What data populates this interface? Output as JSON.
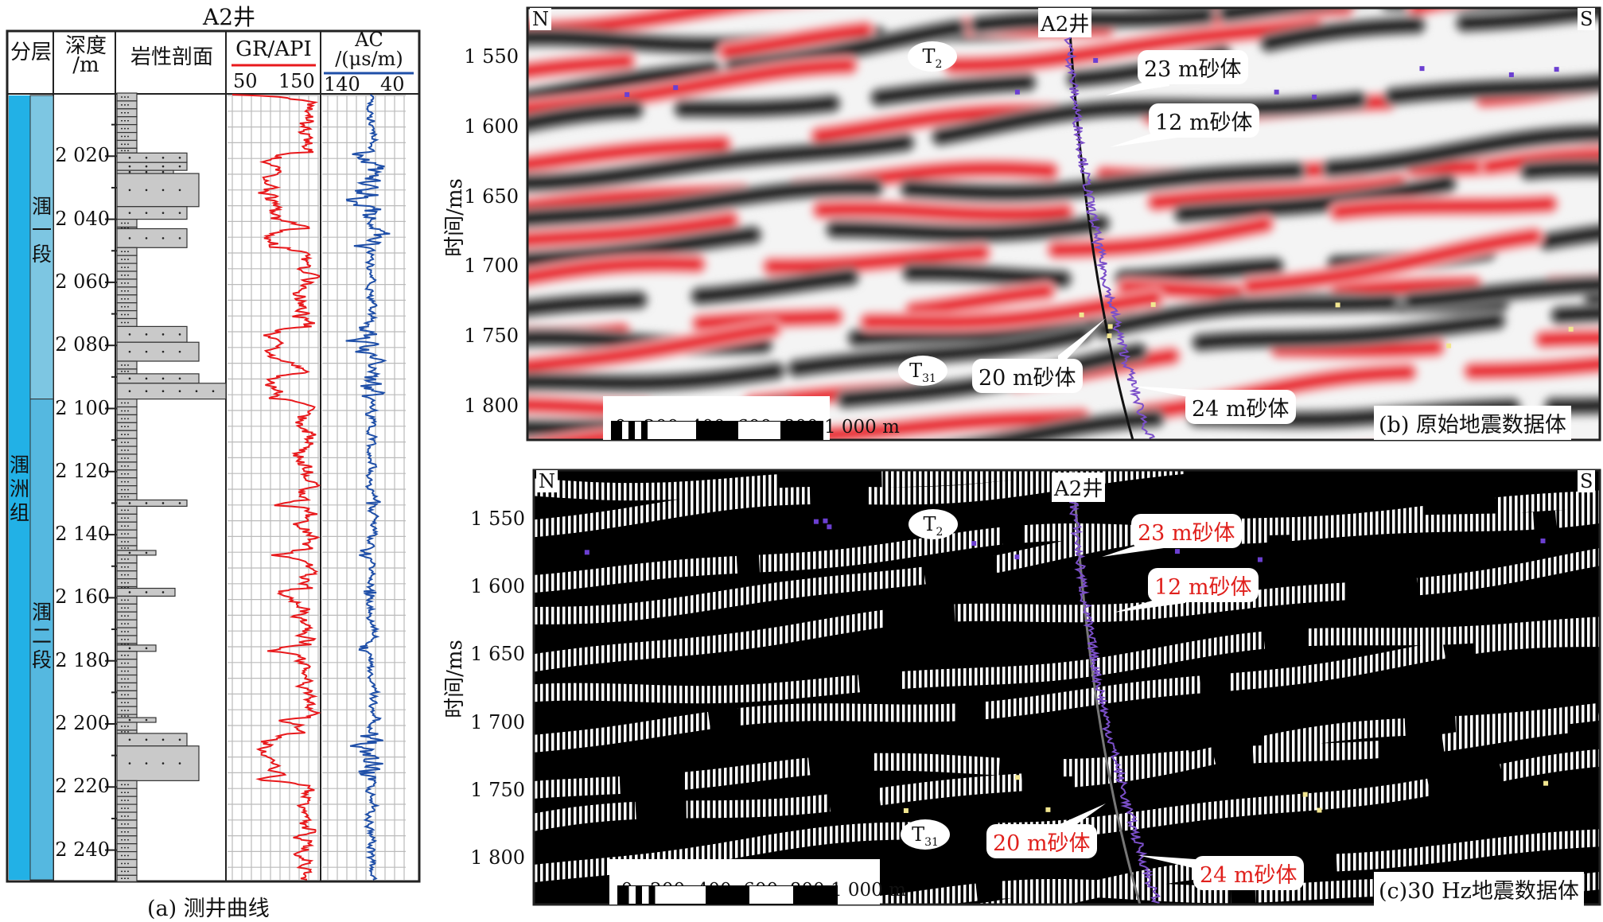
{
  "figure": {
    "well_log": {
      "title": "A2井",
      "caption": "(a) 测井曲线",
      "headers": {
        "layer": "分层",
        "depth": "深度\n/m",
        "lithology": "岩性剖面",
        "gr": "GR/API",
        "gr_scale_min": "50",
        "gr_scale_max": "150",
        "ac": "AC\n/(μs/m)",
        "ac_scale_left": "140",
        "ac_scale_right": "40"
      },
      "formation": "涠洲组",
      "members": [
        "涠一段",
        "涠二段"
      ],
      "depth_ticks": [
        "2 020",
        "2 040",
        "2 060",
        "2 080",
        "2 100",
        "2 120",
        "2 140",
        "2 160",
        "2 180",
        "2 200",
        "2 220",
        "2 240"
      ],
      "colors": {
        "gr": "#e8191c",
        "ac": "#1f4fa8",
        "formation": "#22b1e6",
        "member1": "#7dc6e2",
        "member2": "#55b8e0"
      }
    },
    "seismic_b": {
      "north": "N",
      "south": "S",
      "well": "A2井",
      "horizons": [
        "T2",
        "T31"
      ],
      "callouts": [
        "23 m砂体",
        "12 m砂体",
        "20 m砂体",
        "24 m砂体"
      ],
      "y_ticks": [
        "1 550",
        "1 600",
        "1 650",
        "1 700",
        "1 750",
        "1 800"
      ],
      "y_label": "时间/ms",
      "scale_label": "0   200  400  600  800 1 000 m",
      "panel_title": "(b) 原始地震数据体"
    },
    "seismic_c": {
      "north": "N",
      "south": "S",
      "well": "A2井",
      "horizons": [
        "T2",
        "T31"
      ],
      "callouts": [
        "23 m砂体",
        "12 m砂体",
        "20 m砂体",
        "24 m砂体"
      ],
      "y_ticks": [
        "1 550",
        "1 600",
        "1 650",
        "1 700",
        "1 750",
        "1 800"
      ],
      "y_label": "时间/ms",
      "scale_label": "0   200  400  600  800 1 000 m",
      "panel_title": "(c)30 Hz地震数据体"
    }
  }
}
